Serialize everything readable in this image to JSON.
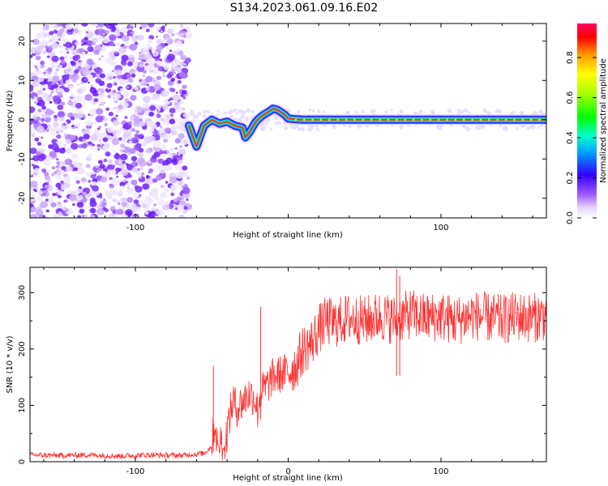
{
  "title": "S134.2023.061.09.16.E02",
  "chart_data": [
    {
      "type": "heatmap",
      "xlabel": "Height of straight line (km)",
      "ylabel": "Frequency (Hz)",
      "xlim": [
        -169,
        169
      ],
      "ylim": [
        -25,
        24.5
      ],
      "xticks": [
        -100,
        0,
        100
      ],
      "xtick_labels": [
        "-100",
        "",
        "100"
      ],
      "yticks": [
        -20,
        -10,
        0,
        10,
        20
      ],
      "colorbar": {
        "label": "Normalized spectral amplitude",
        "range": [
          0,
          0.97
        ],
        "ticks": [
          0.0,
          0.2,
          0.4,
          0.6,
          0.8
        ]
      },
      "noise_region_x": [
        -169,
        -65
      ],
      "signal_track": {
        "x": [
          -65,
          -60,
          -55,
          -50,
          -45,
          -40,
          -35,
          -30,
          -28,
          -25,
          -22,
          -20,
          -17,
          -15,
          -12,
          -10,
          -7,
          -5,
          -2,
          0,
          5,
          10,
          20,
          40,
          60,
          80,
          100,
          120,
          140,
          160,
          169
        ],
        "y": [
          -1.5,
          -6.8,
          -1.5,
          0,
          -1.0,
          -0.5,
          -1.5,
          -2.0,
          -4.5,
          -3.0,
          -1.0,
          0.0,
          1.0,
          1.5,
          2.2,
          2.8,
          2.5,
          2.0,
          1.2,
          0.3,
          0.1,
          0.0,
          0.0,
          0.0,
          0.0,
          0.0,
          0.0,
          0.0,
          0.0,
          0.0,
          0.0
        ]
      }
    },
    {
      "type": "line",
      "xlabel": "Height of straight line (km)",
      "ylabel": "SNR (10 * v/v)",
      "xlim": [
        -169,
        169
      ],
      "ylim": [
        0,
        345
      ],
      "xticks": [
        -100,
        0,
        100
      ],
      "xtick_labels": [
        "-100",
        "0",
        "100"
      ],
      "yticks": [
        0,
        100,
        200,
        300
      ],
      "series": [
        {
          "color": "#ff3333",
          "x": [
            -169,
            -150,
            -130,
            -110,
            -90,
            -70,
            -55,
            -50,
            -48,
            -46,
            -44,
            -42,
            -40,
            -38,
            -36,
            -34,
            -30,
            -26,
            -22,
            -20,
            -18,
            -15,
            -10,
            -5,
            0,
            5,
            10,
            15,
            20,
            25,
            30,
            40,
            50,
            60,
            70,
            80,
            90,
            100,
            110,
            120,
            130,
            140,
            150,
            160,
            169
          ],
          "y": [
            12,
            11,
            12,
            10,
            12,
            11,
            15,
            28,
            70,
            25,
            40,
            20,
            55,
            85,
            110,
            95,
            105,
            120,
            115,
            90,
            125,
            130,
            150,
            155,
            160,
            170,
            200,
            210,
            235,
            250,
            245,
            255,
            250,
            258,
            252,
            262,
            255,
            258,
            250,
            260,
            256,
            252,
            258,
            255,
            260
          ]
        }
      ],
      "spikes": [
        {
          "x": -49,
          "y": 170
        },
        {
          "x": -18,
          "y": 275
        },
        {
          "x": 71,
          "y": 342
        },
        {
          "x": 73,
          "y": 330
        }
      ]
    }
  ]
}
